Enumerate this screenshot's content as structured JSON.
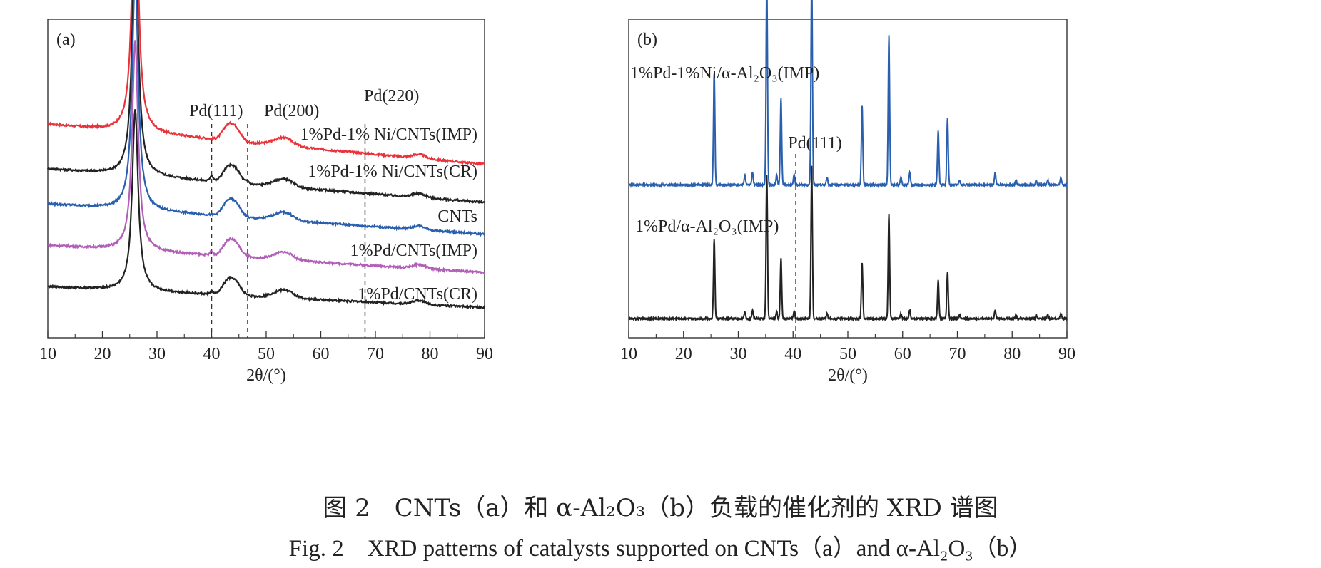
{
  "chart_data": [
    {
      "type": "line",
      "panel_label": "(a)",
      "xlabel": "2θ/(°)",
      "xlim": [
        10,
        90
      ],
      "xticks": [
        10,
        20,
        30,
        40,
        50,
        60,
        70,
        80,
        90
      ],
      "grid": false,
      "reference_lines": [
        {
          "label": "Pd(111)",
          "x": 40.0
        },
        {
          "label": "Pd(200)",
          "x": 46.6
        },
        {
          "label": "Pd(220)",
          "x": 68.1
        }
      ],
      "series": [
        {
          "name": "1%Pd-1% Ni/CNTs(IMP)",
          "color": "#e8333a",
          "baseline": 0.56,
          "tilt": 0.11,
          "scale": 0.86,
          "pd": 0.0
        },
        {
          "name": "1%Pd-1% Ni/CNTs(CR)",
          "color": "#222222",
          "baseline": 0.44,
          "tilt": 0.09,
          "scale": 0.78,
          "pd": 0.35
        },
        {
          "name": "CNTs",
          "color": "#2a5fae",
          "baseline": 0.34,
          "tilt": 0.08,
          "scale": 0.75,
          "pd": 0.0
        },
        {
          "name": "1%Pd/CNTs(IMP)",
          "color": "#b15fb8",
          "baseline": 0.22,
          "tilt": 0.07,
          "scale": 0.66,
          "pd": 0.22
        },
        {
          "name": "1%Pd/CNTs(CR)",
          "color": "#222222",
          "baseline": 0.11,
          "tilt": 0.05,
          "scale": 0.57,
          "pd": 0.15
        }
      ]
    },
    {
      "type": "line",
      "panel_label": "(b)",
      "xlabel": "2θ/(°)",
      "xlim": [
        10,
        90
      ],
      "xticks": [
        10,
        20,
        30,
        40,
        50,
        60,
        70,
        80,
        90
      ],
      "grid": false,
      "reference_lines": [
        {
          "label": "Pd(111)",
          "x": 40.5
        }
      ],
      "peaks": [
        [
          25.6,
          0.45
        ],
        [
          31.2,
          0.04
        ],
        [
          32.6,
          0.05
        ],
        [
          35.2,
          0.82
        ],
        [
          37.0,
          0.04
        ],
        [
          37.8,
          0.35
        ],
        [
          40.2,
          0.04
        ],
        [
          43.4,
          0.87
        ],
        [
          46.2,
          0.03
        ],
        [
          52.6,
          0.32
        ],
        [
          57.5,
          0.6
        ],
        [
          59.7,
          0.03
        ],
        [
          61.3,
          0.05
        ],
        [
          66.5,
          0.22
        ],
        [
          68.2,
          0.27
        ],
        [
          70.4,
          0.02
        ],
        [
          76.9,
          0.05
        ],
        [
          80.7,
          0.02
        ],
        [
          84.4,
          0.02
        ],
        [
          86.5,
          0.02
        ],
        [
          88.9,
          0.03
        ]
      ],
      "series": [
        {
          "name": "1%Pd-1%Ni/α-Al₂O₃(IMP)",
          "color": "#2a5fae",
          "baseline": 0.48,
          "tilt": 0.0,
          "scale": 0.78
        },
        {
          "name": "1%Pd/α-Al₂O₃(IMP)",
          "color": "#222222",
          "baseline": 0.06,
          "tilt": 0.0,
          "scale": 0.55
        }
      ]
    }
  ],
  "captions": {
    "zh": "图 2　CNTs（a）和 α-Al₂O₃（b）负载的催化剂的 XRD 谱图",
    "en": "Fig. 2　XRD patterns of catalysts supported on CNTs（a）and α-Al₂O₃（b）"
  }
}
